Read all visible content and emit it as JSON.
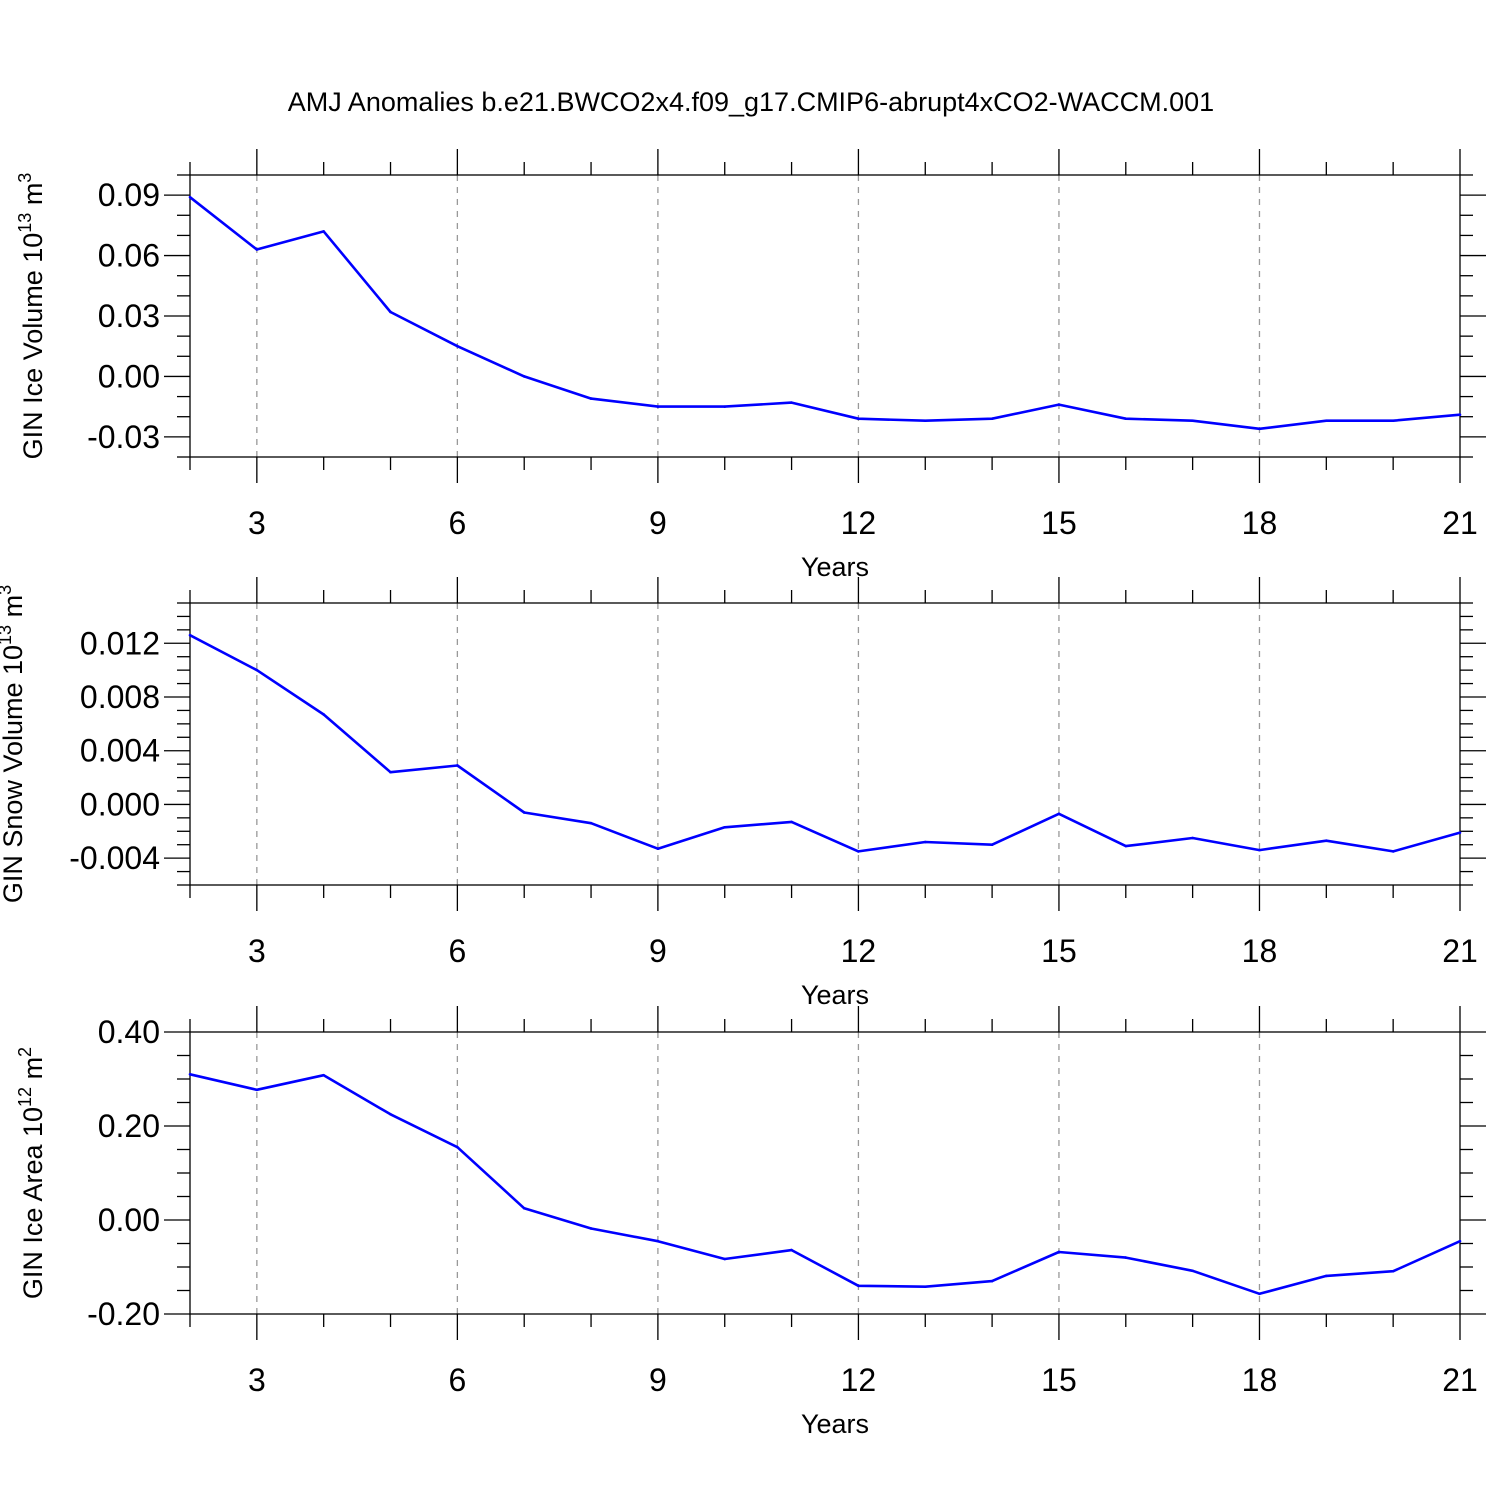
{
  "title": "AMJ Anomalies b.e21.BWCO2x4.f09_g17.CMIP6-abrupt4xCO2-WACCM.001",
  "colors": {
    "line": "#0000ff",
    "axis": "#000000",
    "grid": "#999999"
  },
  "chart_data": [
    {
      "type": "line",
      "ylabel_prefix": "GIN Ice Volume 10",
      "ylabel_exp": "13",
      "ylabel_unit": " m",
      "ylabel_unit_exp": "3",
      "xlabel": "Years",
      "xlim": [
        2,
        21
      ],
      "ylim": [
        -0.04,
        0.1
      ],
      "yticks": [
        0.09,
        0.06,
        0.03,
        0.0,
        -0.03
      ],
      "ytick_labels": [
        "0.09",
        "0.06",
        "0.03",
        "0.00",
        "-0.03"
      ],
      "yminor_step": 0.01,
      "xticks": [
        3,
        6,
        9,
        12,
        15,
        18,
        21
      ],
      "xtick_labels": [
        "3",
        "6",
        "9",
        "12",
        "15",
        "18",
        "21"
      ],
      "grid": "dashed vertical at major x ticks",
      "x": [
        2,
        3,
        4,
        5,
        6,
        7,
        8,
        9,
        10,
        11,
        12,
        13,
        14,
        15,
        16,
        17,
        18,
        19,
        20,
        21
      ],
      "values": [
        0.089,
        0.063,
        0.072,
        0.032,
        0.015,
        0.0,
        -0.011,
        -0.015,
        -0.015,
        -0.013,
        -0.021,
        -0.022,
        -0.021,
        -0.014,
        -0.021,
        -0.022,
        -0.026,
        -0.022,
        -0.022,
        -0.019
      ]
    },
    {
      "type": "line",
      "ylabel_prefix": "GIN Snow Volume 10",
      "ylabel_exp": "13",
      "ylabel_unit": " m",
      "ylabel_unit_exp": "3",
      "xlabel": "Years",
      "xlim": [
        2,
        21
      ],
      "ylim": [
        -0.006,
        0.015
      ],
      "yticks": [
        0.012,
        0.008,
        0.004,
        0.0,
        -0.004
      ],
      "ytick_labels": [
        "0.012",
        "0.008",
        "0.004",
        "0.000",
        "-0.004"
      ],
      "yminor_step": 0.001,
      "xticks": [
        3,
        6,
        9,
        12,
        15,
        18,
        21
      ],
      "xtick_labels": [
        "3",
        "6",
        "9",
        "12",
        "15",
        "18",
        "21"
      ],
      "grid": "dashed vertical at major x ticks",
      "x": [
        2,
        3,
        4,
        5,
        6,
        7,
        8,
        9,
        10,
        11,
        12,
        13,
        14,
        15,
        16,
        17,
        18,
        19,
        20,
        21
      ],
      "values": [
        0.0126,
        0.01,
        0.0067,
        0.0024,
        0.0029,
        -0.0006,
        -0.0014,
        -0.0033,
        -0.0017,
        -0.0013,
        -0.0035,
        -0.0028,
        -0.003,
        -0.0007,
        -0.0031,
        -0.0025,
        -0.0034,
        -0.0027,
        -0.0035,
        -0.0021
      ]
    },
    {
      "type": "line",
      "ylabel_prefix": "GIN Ice Area 10",
      "ylabel_exp": "12",
      "ylabel_unit": " m",
      "ylabel_unit_exp": "2",
      "xlabel": "Years",
      "xlim": [
        2,
        21
      ],
      "ylim": [
        -0.2,
        0.4
      ],
      "yticks": [
        0.4,
        0.2,
        0.0,
        -0.2
      ],
      "ytick_labels": [
        "0.40",
        "0.20",
        "0.00",
        "-0.20"
      ],
      "yminor_step": 0.05,
      "xticks": [
        3,
        6,
        9,
        12,
        15,
        18,
        21
      ],
      "xtick_labels": [
        "3",
        "6",
        "9",
        "12",
        "15",
        "18",
        "21"
      ],
      "grid": "dashed vertical at major x ticks",
      "x": [
        2,
        3,
        4,
        5,
        6,
        7,
        8,
        9,
        10,
        11,
        12,
        13,
        14,
        15,
        16,
        17,
        18,
        19,
        20,
        21
      ],
      "values": [
        0.31,
        0.277,
        0.308,
        0.225,
        0.155,
        0.025,
        -0.018,
        -0.045,
        -0.083,
        -0.064,
        -0.14,
        -0.142,
        -0.13,
        -0.068,
        -0.08,
        -0.108,
        -0.157,
        -0.119,
        -0.109,
        -0.045
      ]
    }
  ]
}
